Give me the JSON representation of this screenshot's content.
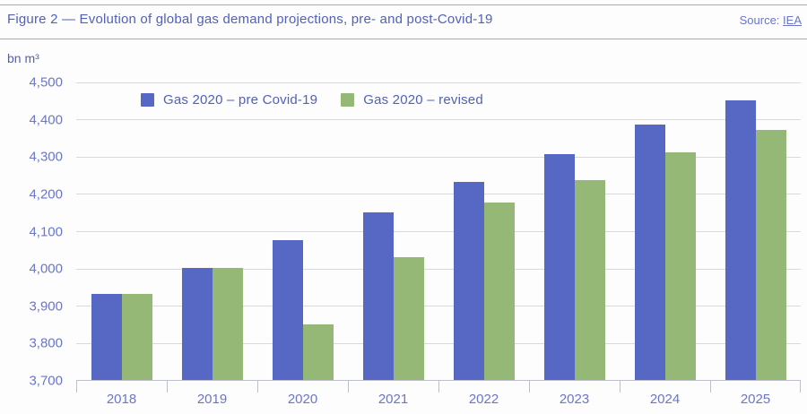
{
  "header": {
    "title": "Figure 2 — Evolution of global gas demand projections, pre- and post-Covid-19",
    "source_label": "Source: ",
    "source_link": "IEA"
  },
  "colors": {
    "accent_text": "#5161b9",
    "accent_soft_text": "#6a76c8",
    "gridline": "#d8d9de",
    "axis_line": "#bcc0ca"
  },
  "chart_data": {
    "type": "bar",
    "unit_label": "bn m³",
    "categories": [
      "2018",
      "2019",
      "2020",
      "2021",
      "2022",
      "2023",
      "2024",
      "2025"
    ],
    "series": [
      {
        "key": "pre-covid",
        "name": "Gas 2020 – pre Covid-19",
        "color": "#5767c4",
        "values": [
          3930,
          4000,
          4075,
          4150,
          4230,
          4305,
          4385,
          4450
        ]
      },
      {
        "key": "revised",
        "name": "Gas 2020 – revised",
        "color": "#95b877",
        "values": [
          3930,
          4000,
          3850,
          4030,
          4175,
          4235,
          4310,
          4370
        ]
      }
    ],
    "ylim": [
      3700,
      4500
    ],
    "yticks": [
      {
        "value": 3700,
        "label": "3,700"
      },
      {
        "value": 3800,
        "label": "3,800"
      },
      {
        "value": 3900,
        "label": "3,900"
      },
      {
        "value": 4000,
        "label": "4,000"
      },
      {
        "value": 4100,
        "label": "4,100"
      },
      {
        "value": 4200,
        "label": "4,200"
      },
      {
        "value": 4300,
        "label": "4,300"
      },
      {
        "value": 4400,
        "label": "4,400"
      },
      {
        "value": 4500,
        "label": "4,500"
      }
    ],
    "grid": true,
    "legend_position": "top-inside"
  }
}
